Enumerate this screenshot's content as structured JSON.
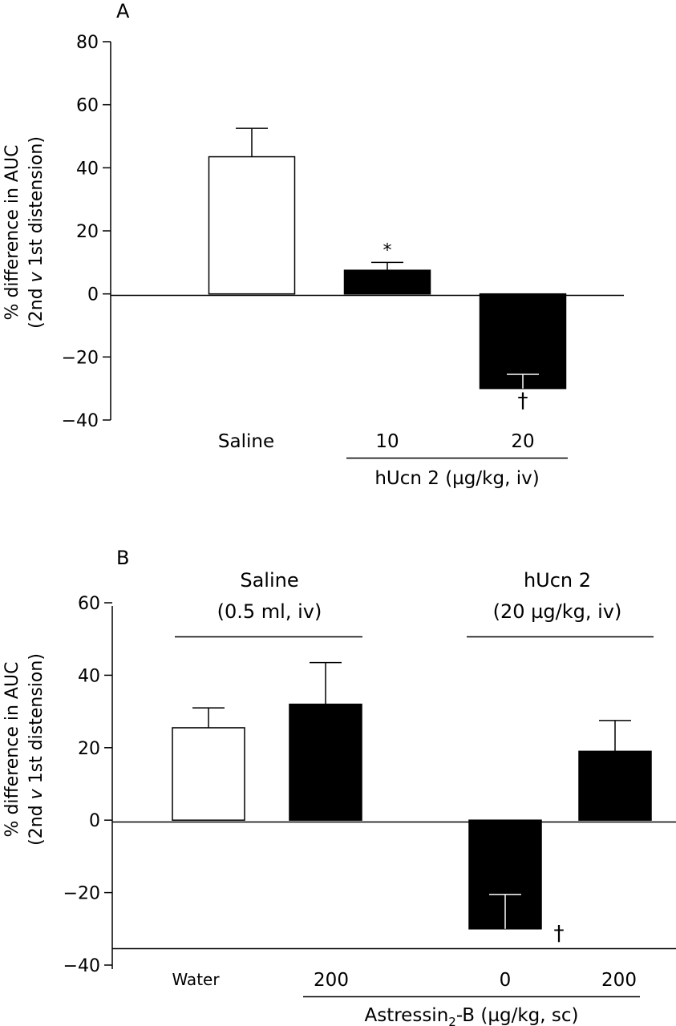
{
  "chart_data": [
    {
      "type": "bar",
      "panel_label": "A",
      "ylabel_line1": "% difference in AUC",
      "ylabel_line2_pre": "(2nd ",
      "ylabel_line2_italic": "v",
      "ylabel_line2_post": " 1st distension)",
      "ylim": [
        -40,
        80
      ],
      "yticks": [
        "80",
        "60",
        "40",
        "20",
        "0",
        "−20",
        "−40"
      ],
      "categories": [
        "Saline",
        "10",
        "20"
      ],
      "values": [
        43.5,
        7.5,
        -30
      ],
      "errors": [
        9,
        2.5,
        4.5
      ],
      "fills": [
        "#ffffff",
        "#000000",
        "#000000"
      ],
      "annotations": [
        "",
        "*",
        "†"
      ],
      "group_label": "hUcn 2 (µg/kg, iv)"
    },
    {
      "type": "bar",
      "panel_label": "B",
      "ylabel_line1": "% difference in AUC",
      "ylabel_line2_pre": "(2nd ",
      "ylabel_line2_italic": "v",
      "ylabel_line2_post": " 1st distension)",
      "ylim": [
        -40,
        60
      ],
      "yticks": [
        "60",
        "40",
        "20",
        "0",
        "−20",
        "−40"
      ],
      "categories": [
        "Water",
        "200",
        "0",
        "200"
      ],
      "values": [
        25.5,
        32,
        -30,
        19
      ],
      "errors": [
        5.5,
        11.5,
        9.5,
        8.5
      ],
      "fills": [
        "#ffffff",
        "#000000",
        "#000000",
        "#000000"
      ],
      "annotations": [
        "",
        "",
        "†",
        ""
      ],
      "top_group_1": [
        "Saline",
        "(0.5 ml, iv)"
      ],
      "top_group_2": [
        "hUcn 2",
        "(20 µg/kg, iv)"
      ],
      "bottom_group_pre": "Astressin",
      "bottom_group_sub": "2",
      "bottom_group_post": "-B (µg/kg, sc)"
    }
  ]
}
